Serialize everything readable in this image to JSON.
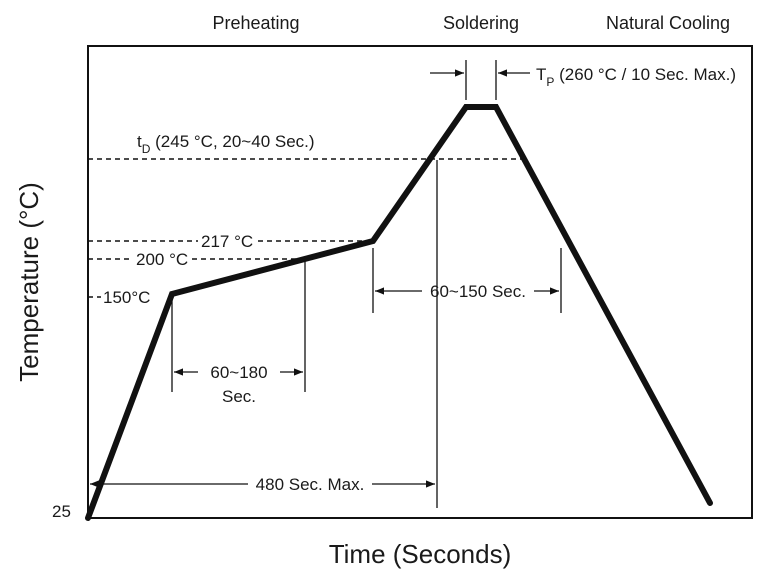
{
  "phases": {
    "preheating": "Preheating",
    "soldering": "Soldering",
    "cooling": "Natural Cooling"
  },
  "axes": {
    "ylabel": "Temperature (°C)",
    "xlabel": "Time (Seconds)",
    "y_origin": "25"
  },
  "temps": {
    "t150": "150°C",
    "t200": "200 °C",
    "t217": "217 °C"
  },
  "annotations": {
    "tp_main": "T",
    "tp_sub": "P",
    "tp_desc": " (260 °C / 10 Sec. Max.)",
    "td_main": "t",
    "td_sub": "D",
    "td_desc": " (245 °C, 20~40 Sec.)",
    "preheat_line1": "60~180",
    "preheat_line2": "Sec.",
    "reflow": "60~150 Sec.",
    "total": "480 Sec. Max."
  }
}
